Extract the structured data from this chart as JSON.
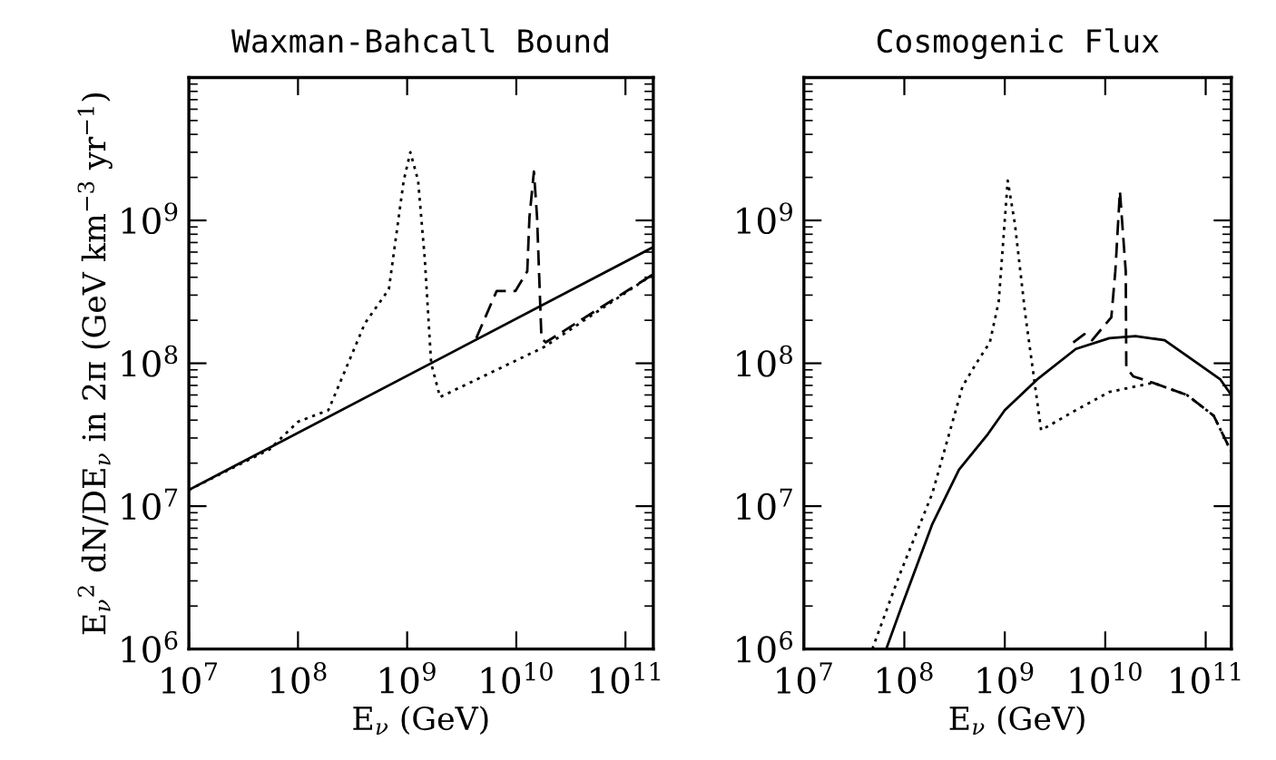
{
  "chart_data": [
    {
      "type": "line",
      "title": "Waxman-Bahcall Bound",
      "xlabel": "E$_{ν}$ (GeV)",
      "ylabel": "E$_{ν}$$^{2}$ dN/DE$_{ν}$ in 2π (GeV km$^{−3}$ yr$^{−1}$)",
      "log": "xy",
      "grid": false,
      "xlim": [
        10000000.0,
        180000000000.0
      ],
      "ylim": [
        1000000.0,
        10000000000.0
      ],
      "xticks": [
        {
          "value": 10000000.0,
          "label": "10$^{7}$"
        },
        {
          "value": 100000000.0,
          "label": "10$^{8}$"
        },
        {
          "value": 1000000000.0,
          "label": "10$^{9}$"
        },
        {
          "value": 10000000000.0,
          "label": "10$^{10}$"
        },
        {
          "value": 100000000000.0,
          "label": "10$^{11}$"
        }
      ],
      "yticks": [
        {
          "value": 1000000.0,
          "label": "10$^{6}$"
        },
        {
          "value": 10000000.0,
          "label": "10$^{7}$"
        },
        {
          "value": 100000000.0,
          "label": "10$^{8}$"
        },
        {
          "value": 1000000000.0,
          "label": "10$^{9}$"
        }
      ],
      "series": [
        {
          "color": "#000000",
          "line_style": "solid",
          "x": [
            10000000.0,
            180000000000.0
          ],
          "values": [
            13000000.0,
            650000000.0
          ]
        },
        {
          "color": "#000000",
          "line_style": "dotted",
          "x": [
            10000000.0,
            55000000.0,
            100000000.0,
            190000000.0,
            410000000.0,
            680000000.0,
            930000000.0,
            1070000000.0,
            1260000000.0,
            1450000000.0,
            1660000000.0,
            2000000000.0,
            18000000000.0,
            180000000000.0
          ],
          "values": [
            13000000.0,
            25000000.0,
            39000000.0,
            47000000.0,
            190000000.0,
            330000000.0,
            1900000000.0,
            3000000000.0,
            1900000000.0,
            540000000.0,
            100000000.0,
            58000000.0,
            130000000.0,
            420000000.0
          ]
        },
        {
          "color": "#000000",
          "line_style": "dashed",
          "x": [
            4300000000.0,
            6600000000.0,
            9800000000.0,
            12600000000.0,
            13200000000.0,
            14500000000.0,
            15500000000.0,
            17000000000.0,
            18600000000.0,
            180000000000.0
          ],
          "values": [
            150000000.0,
            320000000.0,
            320000000.0,
            440000000.0,
            1050000000.0,
            2200000000.0,
            1050000000.0,
            150000000.0,
            140000000.0,
            420000000.0
          ]
        }
      ]
    },
    {
      "type": "line",
      "title": "Cosmogenic Flux",
      "xlabel": "E$_{ν}$ (GeV)",
      "log": "xy",
      "grid": false,
      "xlim": [
        10000000.0,
        180000000000.0
      ],
      "ylim": [
        1000000.0,
        10000000000.0
      ],
      "xticks": [
        {
          "value": 10000000.0,
          "label": "10$^{7}$"
        },
        {
          "value": 100000000.0,
          "label": "10$^{8}$"
        },
        {
          "value": 1000000000.0,
          "label": "10$^{9}$"
        },
        {
          "value": 10000000000.0,
          "label": "10$^{10}$"
        },
        {
          "value": 100000000000.0,
          "label": "10$^{11}$"
        }
      ],
      "yticks": [
        {
          "value": 1000000.0,
          "label": "10$^{6}$"
        },
        {
          "value": 10000000.0,
          "label": "10$^{7}$"
        },
        {
          "value": 100000000.0,
          "label": "10$^{8}$"
        },
        {
          "value": 1000000000.0,
          "label": "10$^{9}$"
        }
      ],
      "series": [
        {
          "color": "#000000",
          "line_style": "solid",
          "x": [
            66000000.0,
            93000000.0,
            190000000.0,
            350000000.0,
            680000000.0,
            1000000000.0,
            2100000000.0,
            5100000000.0,
            11000000000.0,
            20000000000.0,
            39000000000.0,
            83000000000.0,
            140000000000.0,
            180000000000.0
          ],
          "values": [
            1000000.0,
            1950000.0,
            7500000.0,
            18000000.0,
            32000000.0,
            47000000.0,
            77000000.0,
            126000000.0,
            150000000.0,
            155000000.0,
            145000000.0,
            100000000.0,
            77000000.0,
            60000000.0
          ]
        },
        {
          "color": "#000000",
          "line_style": "dotted",
          "x": [
            48000000.0,
            88000000.0,
            190000000.0,
            380000000.0,
            520000000.0,
            710000000.0,
            870000000.0,
            1070000000.0,
            1260000000.0,
            1600000000.0,
            2300000000.0,
            5100000000.0,
            11000000000.0,
            30000000000.0,
            65000000000.0,
            120000000000.0,
            180000000000.0
          ],
          "values": [
            1000000.0,
            3200000.0,
            12300000.0,
            69000000.0,
            100000000.0,
            140000000.0,
            270000000.0,
            1900000000.0,
            950000000.0,
            220000000.0,
            34000000.0,
            47000000.0,
            63000000.0,
            73000000.0,
            60000000.0,
            43000000.0,
            24000000.0
          ]
        },
        {
          "color": "#000000",
          "line_style": "dashed",
          "x": [
            4800000000.0,
            6200000000.0,
            7400000000.0,
            11500000000.0,
            12600000000.0,
            14000000000.0,
            16000000000.0,
            16200000000.0,
            19000000000.0,
            30000000000.0,
            65000000000.0,
            120000000000.0,
            180000000000.0
          ],
          "values": [
            140000000.0,
            160000000.0,
            145000000.0,
            210000000.0,
            440000000.0,
            1600000000.0,
            440000000.0,
            93000000.0,
            81000000.0,
            73000000.0,
            60000000.0,
            43000000.0,
            24000000.0
          ]
        }
      ]
    }
  ]
}
